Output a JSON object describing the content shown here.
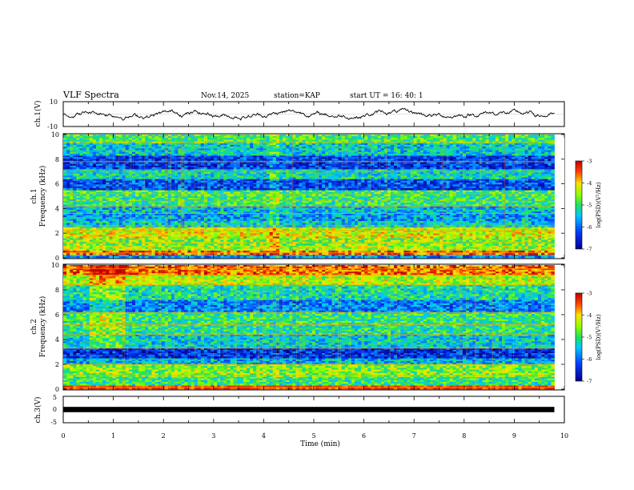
{
  "header": {
    "title": "VLF Spectra",
    "date": "Nov.14, 2025",
    "station": "station=KAP",
    "start": "start  UT =   16: 40: 1"
  },
  "chart_data": [
    {
      "type": "line",
      "panel": "ch1-waveform",
      "ylabel": "ch.1(V)",
      "ylim": [
        -10,
        10
      ],
      "ytick_labels": [
        "10",
        "-10"
      ],
      "x_range_min": [
        0,
        9.8
      ],
      "description_values": {
        "baseline": 0,
        "approx_amplitude": [
          -6,
          5
        ]
      }
    },
    {
      "type": "heatmap",
      "panel": "ch1-spectrogram",
      "ylabel": "Frequency (kHz)",
      "channel_label": "ch.1",
      "ylim": [
        0,
        10
      ],
      "ytick_labels": [
        "0",
        "2",
        "4",
        "6",
        "8",
        "10"
      ],
      "colorbar": {
        "label": "log(PSD)(V²/Hz)",
        "range": [
          -7,
          -3
        ],
        "tick_labels": [
          "-3",
          "-4",
          "-5",
          "-6",
          "-7"
        ]
      },
      "bands": [
        {
          "from": 0,
          "to": 0.25,
          "level": -5.8
        },
        {
          "from": 0.25,
          "to": 0.6,
          "level": -3.6
        },
        {
          "from": 0.6,
          "to": 1.0,
          "level": -4.4
        },
        {
          "from": 1.0,
          "to": 1.6,
          "level": -4.6
        },
        {
          "from": 1.6,
          "to": 2.1,
          "level": -4.2
        },
        {
          "from": 2.1,
          "to": 2.5,
          "level": -4.4
        },
        {
          "from": 2.5,
          "to": 3.0,
          "level": -5.4
        },
        {
          "from": 3.0,
          "to": 3.6,
          "level": -5.7
        },
        {
          "from": 3.6,
          "to": 4.2,
          "level": -5.5
        },
        {
          "from": 4.2,
          "to": 5.0,
          "level": -5.0
        },
        {
          "from": 5.0,
          "to": 5.5,
          "level": -4.9
        },
        {
          "from": 5.5,
          "to": 6.4,
          "level": -6.2
        },
        {
          "from": 6.4,
          "to": 7.2,
          "level": -5.3
        },
        {
          "from": 7.2,
          "to": 8.3,
          "level": -6.3
        },
        {
          "from": 8.3,
          "to": 9.3,
          "level": -5.4
        },
        {
          "from": 9.3,
          "to": 10.0,
          "level": -4.9
        }
      ],
      "lines_khz": [
        0.4,
        1.2,
        2.2,
        2.6,
        3.6,
        4.2,
        4.6,
        5.2,
        7.0,
        7.8,
        9.4
      ],
      "x_range_min": [
        0,
        9.8
      ]
    },
    {
      "type": "heatmap",
      "panel": "ch2-spectrogram",
      "ylabel": "Frequency (kHz)",
      "channel_label": "ch.2",
      "ylim": [
        0,
        10
      ],
      "ytick_labels": [
        "0",
        "2",
        "4",
        "6",
        "8",
        "10"
      ],
      "colorbar": {
        "label": "log(PSD)(V²/Hz)",
        "range": [
          -7,
          -3
        ],
        "tick_labels": [
          "-3",
          "-4",
          "-5",
          "-6",
          "-7"
        ]
      },
      "bands": [
        {
          "from": 0,
          "to": 0.3,
          "level": -3.2
        },
        {
          "from": 0.3,
          "to": 1.0,
          "level": -5.0
        },
        {
          "from": 1.0,
          "to": 2.0,
          "level": -4.6
        },
        {
          "from": 2.0,
          "to": 2.5,
          "level": -5.6
        },
        {
          "from": 2.5,
          "to": 3.3,
          "level": -6.4
        },
        {
          "from": 3.3,
          "to": 4.4,
          "level": -5.4
        },
        {
          "from": 4.4,
          "to": 5.2,
          "level": -5.1
        },
        {
          "from": 5.2,
          "to": 6.2,
          "level": -5.0
        },
        {
          "from": 6.2,
          "to": 7.2,
          "level": -5.9
        },
        {
          "from": 7.2,
          "to": 8.4,
          "level": -5.2
        },
        {
          "from": 8.4,
          "to": 9.2,
          "level": -4.4
        },
        {
          "from": 9.2,
          "to": 10.0,
          "level": -3.6
        }
      ],
      "lines_khz": [
        0.1,
        0.2,
        1.1,
        2.0,
        3.3,
        4.4,
        5.2,
        6.2,
        8.4,
        9.2,
        9.7
      ],
      "x_range_min": [
        0,
        9.8
      ]
    },
    {
      "type": "line",
      "panel": "ch3-waveform",
      "ylabel": "ch.3(V)",
      "ylim": [
        -5,
        5
      ],
      "ytick_labels": [
        "5",
        "0",
        "-5"
      ],
      "level_band": [
        -0.4,
        0.4
      ],
      "x_range_min": [
        0,
        9.8
      ]
    }
  ],
  "xaxis": {
    "label": "Time (min)",
    "range": [
      0,
      10
    ],
    "tick_labels": [
      "0",
      "1",
      "2",
      "3",
      "4",
      "5",
      "6",
      "7",
      "8",
      "9",
      "10"
    ]
  }
}
